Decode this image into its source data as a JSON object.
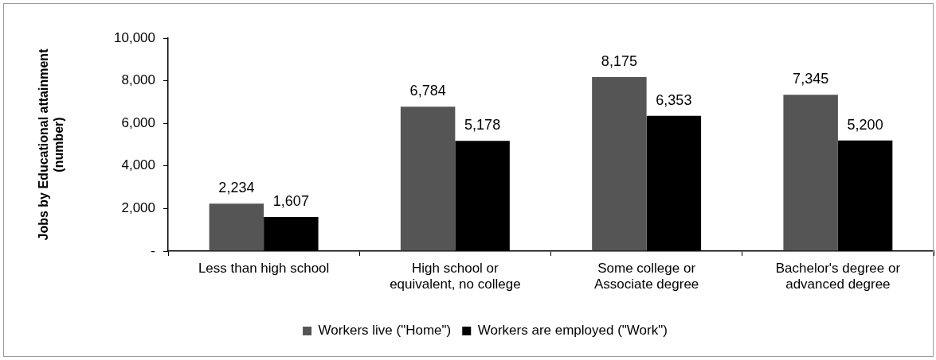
{
  "chart_data": {
    "type": "bar",
    "ylabel": "Jobs by Educational attainment\n(number)",
    "categories": [
      "Less than high school",
      "High school or\nequivalent, no college",
      "Some college or\nAssociate degree",
      "Bachelor's degree or\nadvanced degree"
    ],
    "series": [
      {
        "name": "Workers live (\"Home\")",
        "color": "#555555",
        "values": [
          2234,
          6784,
          8175,
          7345
        ],
        "value_labels": [
          "2,234",
          "6,784",
          "8,175",
          "7,345"
        ]
      },
      {
        "name": "Workers are employed (\"Work\")",
        "color": "#000000",
        "values": [
          1607,
          5178,
          6353,
          5200
        ],
        "value_labels": [
          "1,607",
          "5,178",
          "6,353",
          "5,200"
        ]
      }
    ],
    "ylim": [
      0,
      10000
    ],
    "yticks": [
      {
        "value": 0,
        "label": "-"
      },
      {
        "value": 2000,
        "label": "2,000"
      },
      {
        "value": 4000,
        "label": "4,000"
      },
      {
        "value": 6000,
        "label": "6,000"
      },
      {
        "value": 8000,
        "label": "8,000"
      },
      {
        "value": 10000,
        "label": "10,000"
      }
    ],
    "legend": "bottom"
  }
}
